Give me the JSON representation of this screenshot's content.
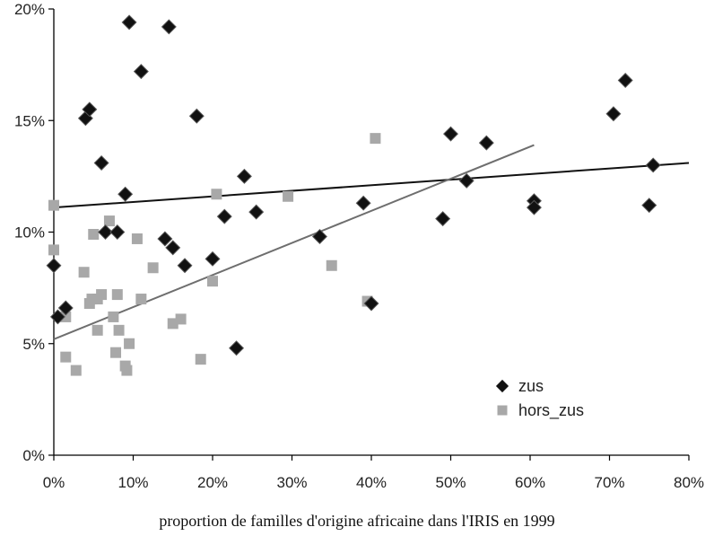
{
  "chart_data": {
    "type": "scatter",
    "xlabel": "proportion de familles d'origine africaine dans l'IRIS en 1999",
    "ylabel": "",
    "xlim": [
      0,
      0.8
    ],
    "ylim": [
      0,
      0.2
    ],
    "x_ticks": [
      "0%",
      "10%",
      "20%",
      "30%",
      "40%",
      "50%",
      "60%",
      "70%",
      "80%"
    ],
    "y_ticks": [
      "0%",
      "5%",
      "10%",
      "15%",
      "20%"
    ],
    "grid": false,
    "legend_position": "bottom-right",
    "series": [
      {
        "name": "zus",
        "marker": "diamond",
        "color": "#111111",
        "points": [
          [
            0.0,
            0.085
          ],
          [
            0.005,
            0.062
          ],
          [
            0.015,
            0.066
          ],
          [
            0.04,
            0.151
          ],
          [
            0.045,
            0.155
          ],
          [
            0.06,
            0.131
          ],
          [
            0.065,
            0.1
          ],
          [
            0.08,
            0.1
          ],
          [
            0.09,
            0.117
          ],
          [
            0.095,
            0.194
          ],
          [
            0.11,
            0.172
          ],
          [
            0.14,
            0.097
          ],
          [
            0.145,
            0.192
          ],
          [
            0.15,
            0.093
          ],
          [
            0.165,
            0.085
          ],
          [
            0.18,
            0.152
          ],
          [
            0.2,
            0.088
          ],
          [
            0.215,
            0.107
          ],
          [
            0.23,
            0.048
          ],
          [
            0.24,
            0.125
          ],
          [
            0.255,
            0.109
          ],
          [
            0.335,
            0.098
          ],
          [
            0.39,
            0.113
          ],
          [
            0.4,
            0.068
          ],
          [
            0.49,
            0.106
          ],
          [
            0.5,
            0.144
          ],
          [
            0.52,
            0.123
          ],
          [
            0.545,
            0.14
          ],
          [
            0.605,
            0.114
          ],
          [
            0.605,
            0.111
          ],
          [
            0.705,
            0.153
          ],
          [
            0.72,
            0.168
          ],
          [
            0.75,
            0.112
          ],
          [
            0.755,
            0.13
          ]
        ]
      },
      {
        "name": "hors_zus",
        "marker": "square",
        "color": "#a8a8a8",
        "points": [
          [
            0.0,
            0.112
          ],
          [
            0.0,
            0.092
          ],
          [
            0.015,
            0.044
          ],
          [
            0.015,
            0.062
          ],
          [
            0.028,
            0.038
          ],
          [
            0.038,
            0.082
          ],
          [
            0.045,
            0.068
          ],
          [
            0.048,
            0.07
          ],
          [
            0.05,
            0.099
          ],
          [
            0.055,
            0.07
          ],
          [
            0.055,
            0.056
          ],
          [
            0.06,
            0.072
          ],
          [
            0.07,
            0.105
          ],
          [
            0.075,
            0.062
          ],
          [
            0.08,
            0.072
          ],
          [
            0.078,
            0.046
          ],
          [
            0.082,
            0.056
          ],
          [
            0.09,
            0.04
          ],
          [
            0.092,
            0.038
          ],
          [
            0.095,
            0.05
          ],
          [
            0.105,
            0.097
          ],
          [
            0.11,
            0.07
          ],
          [
            0.125,
            0.084
          ],
          [
            0.15,
            0.059
          ],
          [
            0.16,
            0.061
          ],
          [
            0.185,
            0.043
          ],
          [
            0.2,
            0.078
          ],
          [
            0.205,
            0.117
          ],
          [
            0.295,
            0.116
          ],
          [
            0.35,
            0.085
          ],
          [
            0.395,
            0.069
          ],
          [
            0.405,
            0.142
          ]
        ]
      }
    ],
    "trendlines": [
      {
        "series": "zus",
        "color": "#111111",
        "x": [
          0.0,
          0.8
        ],
        "y": [
          0.111,
          0.131
        ]
      },
      {
        "series": "hors_zus",
        "color": "#6e6e6e",
        "x": [
          0.0,
          0.605
        ],
        "y": [
          0.052,
          0.139
        ]
      }
    ]
  }
}
